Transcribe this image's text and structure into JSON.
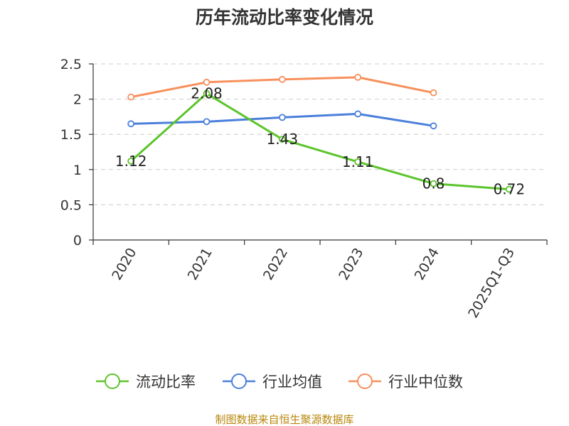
{
  "chart_data": {
    "type": "line",
    "title": "历年流动比率变化情况",
    "categories": [
      "2020",
      "2021",
      "2022",
      "2023",
      "2024",
      "2025Q1-Q3"
    ],
    "ylim": [
      0,
      2.5
    ],
    "yticks": [
      "0",
      "0.5",
      "1",
      "1.5",
      "2",
      "2.5"
    ],
    "grid": true,
    "legend_position": "bottom",
    "series": [
      {
        "name": "流动比率",
        "color": "#5cc42b",
        "values": [
          1.12,
          2.08,
          1.43,
          1.11,
          0.8,
          0.72
        ],
        "labels": [
          "1.12",
          "2.08",
          "1.43",
          "1.11",
          "0.8",
          "0.72"
        ]
      },
      {
        "name": "行业均值",
        "color": "#4a7fdb",
        "values": [
          1.65,
          1.68,
          1.74,
          1.79,
          1.62,
          null
        ]
      },
      {
        "name": "行业中位数",
        "color": "#f7905c",
        "values": [
          2.03,
          2.24,
          2.28,
          2.31,
          2.09,
          null
        ]
      }
    ],
    "source": "制图数据来自恒生聚源数据库"
  }
}
